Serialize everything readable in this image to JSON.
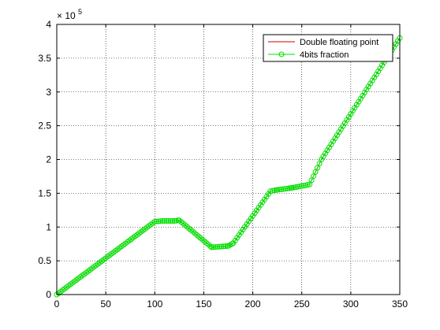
{
  "chart_data": {
    "type": "line",
    "xlim": [
      0,
      350
    ],
    "ylim": [
      0,
      400000
    ],
    "x_ticks": [
      0,
      50,
      100,
      150,
      200,
      250,
      300,
      350
    ],
    "y_ticks": [
      0,
      50000,
      100000,
      150000,
      200000,
      250000,
      300000,
      350000,
      400000
    ],
    "x_tick_labels": [
      "0",
      "50",
      "100",
      "150",
      "200",
      "250",
      "300",
      "350"
    ],
    "y_tick_labels": [
      "0",
      "0.5",
      "1",
      "1.5",
      "2",
      "2.5",
      "3",
      "3.5",
      "4"
    ],
    "y_exponent_label": {
      "base": "× 10",
      "exponent": "5"
    },
    "grid": true,
    "legend_position": "top-right",
    "series": [
      {
        "name": "Double floating point",
        "color": "#cc0000",
        "marker": "none",
        "x": [
          0,
          100,
          108,
          120,
          125,
          158,
          175,
          180,
          218,
          225,
          240,
          258,
          270,
          350
        ],
        "y": [
          0,
          108000,
          109000,
          109000,
          110000,
          70000,
          72000,
          76000,
          153000,
          155000,
          158000,
          163000,
          200000,
          380000
        ]
      },
      {
        "name": "4bits fraction",
        "color": "#00e000",
        "marker": "circle",
        "x": [
          0,
          100,
          108,
          120,
          125,
          158,
          175,
          180,
          218,
          225,
          240,
          258,
          270,
          350
        ],
        "y": [
          0,
          108000,
          109000,
          109000,
          110000,
          70000,
          72000,
          76000,
          153000,
          155000,
          158000,
          163000,
          200000,
          380000
        ]
      }
    ]
  }
}
